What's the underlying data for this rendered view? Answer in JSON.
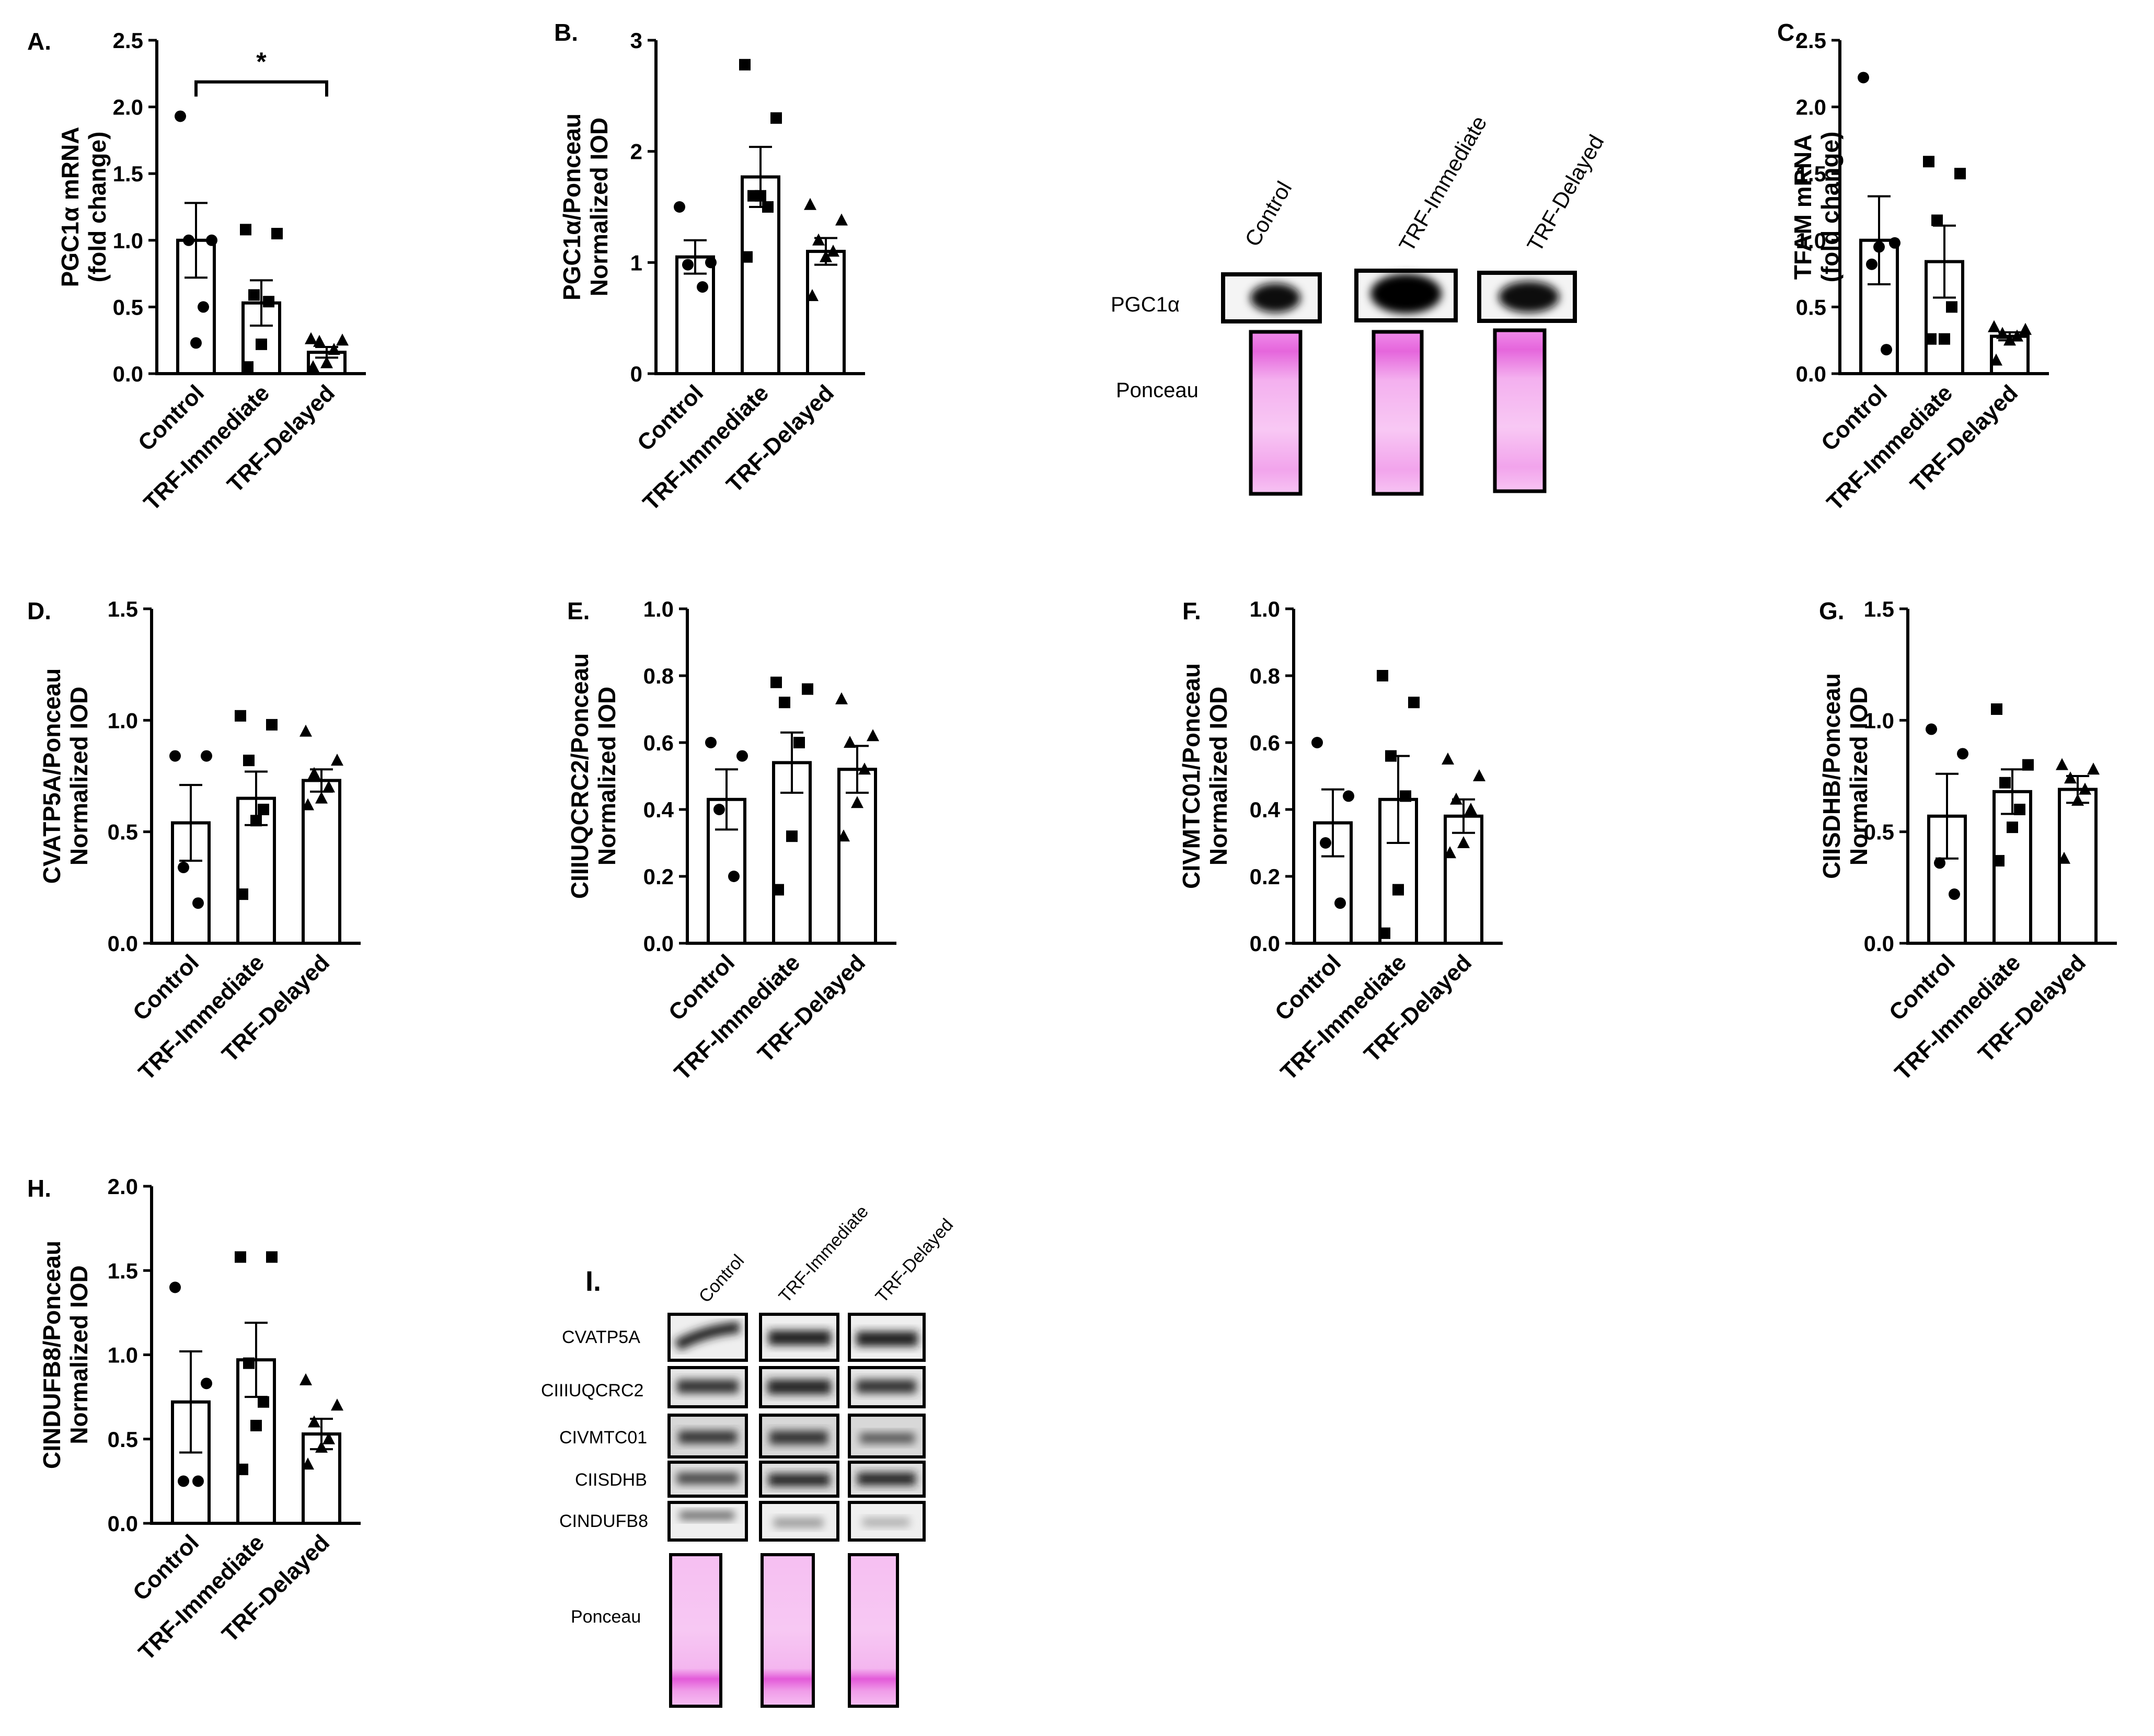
{
  "groups": [
    "Control",
    "TRF-Immediate",
    "TRF-Delayed"
  ],
  "chart_data": [
    {
      "panel": "A.",
      "type": "bar",
      "ylabel": [
        "PGC1α mRNA",
        "(fold change)"
      ],
      "ylim": [
        0,
        2.5
      ],
      "ticks": [
        "0.0",
        "0.5",
        "1.0",
        "1.5",
        "2.0",
        "2.5"
      ],
      "categories": [
        "Control",
        "TRF-Immediate",
        "TRF-Delayed"
      ],
      "values": [
        1.0,
        0.53,
        0.16
      ],
      "sem": [
        0.28,
        0.17,
        0.04
      ],
      "points": [
        [
          1.93,
          1.0,
          1.0,
          0.5,
          0.23
        ],
        [
          1.08,
          1.05,
          0.59,
          0.54,
          0.22,
          0.05
        ],
        [
          0.26,
          0.25,
          0.24,
          0.18,
          0.08,
          0.05
        ]
      ],
      "significance": {
        "from": "Control",
        "to": "TRF-Delayed",
        "label": "*"
      }
    },
    {
      "panel": "B.",
      "type": "bar",
      "ylabel": [
        "PGC1α/Ponceau",
        "Normalized IOD"
      ],
      "ylim": [
        0,
        3
      ],
      "ticks": [
        "0",
        "1",
        "2",
        "3"
      ],
      "categories": [
        "Control",
        "TRF-Immediate",
        "TRF-Delayed"
      ],
      "values": [
        1.05,
        1.77,
        1.1
      ],
      "sem": [
        0.15,
        0.27,
        0.12
      ],
      "points": [
        [
          1.5,
          1.0,
          0.98,
          0.78
        ],
        [
          2.78,
          2.3,
          1.6,
          1.5,
          1.6,
          1.05
        ],
        [
          1.52,
          1.38,
          1.2,
          1.1,
          1.05,
          0.7
        ]
      ]
    },
    {
      "panel": "C.",
      "type": "bar",
      "ylabel": [
        "TFAM mRNA",
        "(fold change)"
      ],
      "ylim": [
        0,
        2.5
      ],
      "ticks": [
        "0.0",
        "0.5",
        "1.0",
        "1.5",
        "2.0",
        "2.5"
      ],
      "categories": [
        "Control",
        "TRF-Immediate",
        "TRF-Delayed"
      ],
      "values": [
        1.0,
        0.84,
        0.28
      ],
      "sem": [
        0.33,
        0.27,
        0.03
      ],
      "points": [
        [
          2.22,
          0.98,
          0.82,
          0.18,
          0.95
        ],
        [
          1.59,
          1.5,
          1.15,
          0.5,
          0.26,
          0.26
        ],
        [
          0.35,
          0.33,
          0.3,
          0.28,
          0.25,
          0.1
        ]
      ]
    },
    {
      "panel": "D.",
      "type": "bar",
      "ylabel": [
        "CVATP5A/Ponceau",
        "Normalized IOD"
      ],
      "ylim": [
        0,
        1.5
      ],
      "ticks": [
        "0.0",
        "0.5",
        "1.0",
        "1.5"
      ],
      "categories": [
        "Control",
        "TRF-Immediate",
        "TRF-Delayed"
      ],
      "values": [
        0.54,
        0.65,
        0.73
      ],
      "sem": [
        0.17,
        0.12,
        0.05
      ],
      "points": [
        [
          0.84,
          0.84,
          0.34,
          0.18
        ],
        [
          1.02,
          0.98,
          0.82,
          0.6,
          0.55,
          0.22
        ],
        [
          0.95,
          0.82,
          0.76,
          0.7,
          0.65,
          0.62
        ]
      ]
    },
    {
      "panel": "E.",
      "type": "bar",
      "ylabel": [
        "CIIIUQCRC2/Ponceau",
        "Normalized IOD"
      ],
      "ylim": [
        0,
        1.0
      ],
      "ticks": [
        "0.0",
        "0.2",
        "0.4",
        "0.6",
        "0.8",
        "1.0"
      ],
      "categories": [
        "Control",
        "TRF-Immediate",
        "TRF-Delayed"
      ],
      "values": [
        0.43,
        0.54,
        0.52
      ],
      "sem": [
        0.09,
        0.09,
        0.07
      ],
      "points": [
        [
          0.6,
          0.56,
          0.4,
          0.2
        ],
        [
          0.78,
          0.76,
          0.72,
          0.6,
          0.32,
          0.16
        ],
        [
          0.73,
          0.62,
          0.6,
          0.52,
          0.42,
          0.32
        ]
      ]
    },
    {
      "panel": "F.",
      "type": "bar",
      "ylabel": [
        "CIVMTC01/Ponceau",
        "Normalized IOD"
      ],
      "ylim": [
        0,
        1.0
      ],
      "ticks": [
        "0.0",
        "0.2",
        "0.4",
        "0.6",
        "0.8",
        "1.0"
      ],
      "categories": [
        "Control",
        "TRF-Immediate",
        "TRF-Delayed"
      ],
      "values": [
        0.36,
        0.43,
        0.38
      ],
      "sem": [
        0.1,
        0.13,
        0.05
      ],
      "points": [
        [
          0.6,
          0.44,
          0.3,
          0.12
        ],
        [
          0.8,
          0.72,
          0.56,
          0.44,
          0.16,
          0.03
        ],
        [
          0.55,
          0.5,
          0.43,
          0.4,
          0.3,
          0.27
        ]
      ]
    },
    {
      "panel": "G.",
      "type": "bar",
      "ylabel": [
        "CIISDHB/Ponceau",
        "Normalized IOD"
      ],
      "ylim": [
        0,
        1.5
      ],
      "ticks": [
        "0.0",
        "0.5",
        "1.0",
        "1.5"
      ],
      "categories": [
        "Control",
        "TRF-Immediate",
        "TRF-Delayed"
      ],
      "values": [
        0.57,
        0.68,
        0.69
      ],
      "sem": [
        0.19,
        0.1,
        0.06
      ],
      "points": [
        [
          0.96,
          0.85,
          0.36,
          0.22
        ],
        [
          1.05,
          0.8,
          0.72,
          0.6,
          0.52,
          0.37
        ],
        [
          0.8,
          0.78,
          0.74,
          0.69,
          0.64,
          0.38
        ]
      ]
    },
    {
      "panel": "H.",
      "type": "bar",
      "ylabel": [
        "CINDUFB8/Ponceau",
        "Normalized IOD"
      ],
      "ylim": [
        0,
        2.0
      ],
      "ticks": [
        "0.0",
        "0.5",
        "1.0",
        "1.5",
        "2.0"
      ],
      "categories": [
        "Control",
        "TRF-Immediate",
        "TRF-Delayed"
      ],
      "values": [
        0.72,
        0.97,
        0.53
      ],
      "sem": [
        0.3,
        0.22,
        0.09
      ],
      "points": [
        [
          1.4,
          0.83,
          0.25,
          0.25
        ],
        [
          1.58,
          1.58,
          0.95,
          0.72,
          0.58,
          0.32
        ],
        [
          0.85,
          0.7,
          0.6,
          0.5,
          0.45,
          0.35
        ]
      ]
    }
  ],
  "blot1": {
    "lane_labels": [
      "Control",
      "TRF-Immediate",
      "TRF-Delayed"
    ],
    "row_labels": [
      "PGC1α",
      "Ponceau"
    ]
  },
  "blot2": {
    "panel": "I.",
    "lane_labels": [
      "Control",
      "TRF-Immediate",
      "TRF-Delayed"
    ],
    "row_labels": [
      "CVATP5A",
      "CIIIUQCRC2",
      "CIVMTC01",
      "CIISDHB",
      "CINDUFB8",
      "Ponceau"
    ]
  },
  "colors": {
    "stain": "#e060d8",
    "band": "#1a1a1a",
    "axis": "#000000"
  }
}
